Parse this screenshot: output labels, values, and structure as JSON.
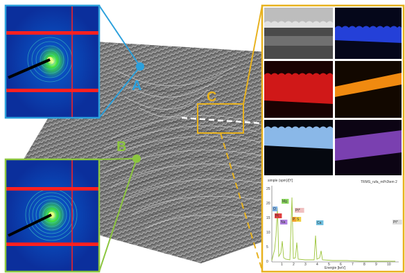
{
  "labels": {
    "a": "A",
    "b": "B",
    "c": "C"
  },
  "colors": {
    "a": "#2ca0dc",
    "b": "#8cc63f",
    "c": "#e8b21f"
  },
  "spectrum": {
    "title": "simple (spm)/[Y]",
    "legend": "TRMS_rufa_mPr2tem 2",
    "xlabel": "Energie [keV]",
    "yticks": [
      "25",
      "20",
      "15",
      "10",
      "5",
      "0"
    ],
    "xticks": [
      "1",
      "2",
      "3",
      "4",
      "5",
      "6",
      "7",
      "8",
      "9",
      "10"
    ],
    "peaks": [
      {
        "label": "O",
        "color": "#7fb2e6"
      },
      {
        "label": "Pt",
        "color": "#e04040"
      },
      {
        "label": "Mg",
        "color": "#8cd860"
      },
      {
        "label": "Na",
        "color": "#b080e0"
      },
      {
        "label": "P",
        "color": "#f0a030"
      },
      {
        "label": "S",
        "color": "#f0d040"
      },
      {
        "label": "Pt*",
        "color": "#f0c0c0"
      },
      {
        "label": "Ca",
        "color": "#70c0e0"
      },
      {
        "label": "Pt*",
        "color": "#dddddd"
      }
    ]
  }
}
